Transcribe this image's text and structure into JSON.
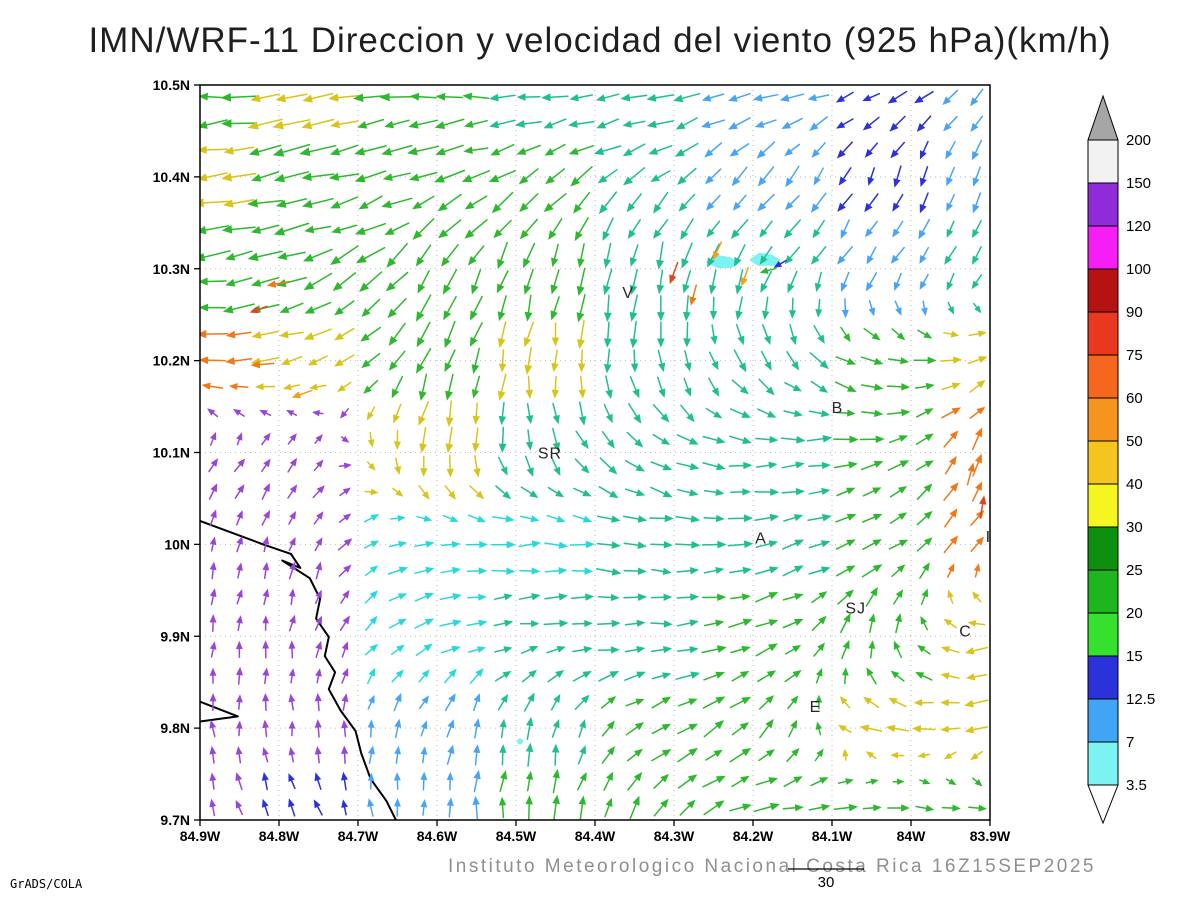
{
  "title": "IMN/WRF-11 Direccion y velocidad del viento (925 hPa)(km/h)",
  "footer": {
    "credit": "GrADS/COLA",
    "caption": "Instituto Meteorologico Nacional Costa Rica  16Z15SEP2025",
    "scale_label": "30"
  },
  "chart_data": {
    "type": "vector-field-map",
    "description": "Wind direction and speed vectors at 925 hPa over Costa Rica, arrows colored by speed (km/h)",
    "x_tick_labels": [
      "84.9W",
      "84.8W",
      "84.7W",
      "84.6W",
      "84.5W",
      "84.4W",
      "84.3W",
      "84.2W",
      "84.1W",
      "84W",
      "83.9W"
    ],
    "y_tick_labels": [
      "10.5N",
      "10.4N",
      "10.3N",
      "10.2N",
      "10.1N",
      "10N",
      "9.9N",
      "9.8N",
      "9.7N"
    ],
    "colorbar": {
      "levels": [
        3.5,
        7,
        12.5,
        15,
        20,
        25,
        30,
        40,
        50,
        60,
        75,
        90,
        100,
        120,
        150,
        200
      ],
      "colors": [
        "#7df2f2",
        "#42a4f5",
        "#2b32d9",
        "#35e02f",
        "#1fb51f",
        "#0e8f0e",
        "#f5f51f",
        "#f5c51f",
        "#f5941f",
        "#f5661f",
        "#e8391f",
        "#b51212",
        "#f51ff5",
        "#8f2bd9",
        "#f2f2f2"
      ],
      "over_color": "#a6a6a6",
      "under_color": "#ffffff"
    },
    "arrow_colors": {
      "cyan": "#29d9d9",
      "sky": "#4aa4f5",
      "blue": "#2b32d9",
      "purple": "#9a45d9",
      "teal": "#1fbf8f",
      "green": "#2eb82e",
      "yellow": "#d9c419",
      "gold": "#f0a019",
      "orange": "#f07819",
      "red": "#e0451f"
    },
    "station_labels": [
      {
        "text": "V",
        "x": 0.542,
        "y": 0.29
      },
      {
        "text": "B",
        "x": 0.807,
        "y": 0.446
      },
      {
        "text": "SR",
        "x": 0.443,
        "y": 0.508
      },
      {
        "text": "A",
        "x": 0.71,
        "y": 0.624
      },
      {
        "text": "SJ",
        "x": 0.83,
        "y": 0.719
      },
      {
        "text": "C",
        "x": 0.969,
        "y": 0.75
      },
      {
        "text": "E",
        "x": 0.779,
        "y": 0.853
      },
      {
        "text": "I",
        "x": 0.998,
        "y": 0.622
      }
    ],
    "wind_grid": {
      "cols": [
        0,
        0.14,
        0.29,
        0.43,
        0.57,
        0.71,
        0.86,
        1.0
      ],
      "rows": [
        0,
        0.12,
        0.25,
        0.37,
        0.5,
        0.62,
        0.75,
        0.87,
        1.0
      ],
      "points": [
        [
          [
            185,
            0.8,
            "green"
          ],
          [
            185,
            0.85,
            "yellow"
          ],
          [
            180,
            0.7,
            "green"
          ],
          [
            180,
            0.6,
            "teal"
          ],
          [
            185,
            0.6,
            "teal"
          ],
          [
            190,
            0.5,
            "sky"
          ],
          [
            200,
            0.45,
            "blue"
          ],
          [
            235,
            0.4,
            "sky"
          ]
        ],
        [
          [
            190,
            0.9,
            "yellow"
          ],
          [
            195,
            0.85,
            "green"
          ],
          [
            195,
            0.7,
            "green"
          ],
          [
            210,
            0.65,
            "green"
          ],
          [
            215,
            0.6,
            "teal"
          ],
          [
            225,
            0.5,
            "sky"
          ],
          [
            245,
            0.45,
            "blue"
          ],
          [
            255,
            0.4,
            "sky"
          ]
        ],
        [
          [
            185,
            0.8,
            "green"
          ],
          [
            200,
            0.75,
            "green"
          ],
          [
            235,
            0.7,
            "green"
          ],
          [
            255,
            0.65,
            "green"
          ],
          [
            260,
            0.6,
            "teal"
          ],
          [
            240,
            0.5,
            "teal"
          ],
          [
            235,
            0.45,
            "sky"
          ],
          [
            235,
            0.4,
            "teal"
          ]
        ],
        [
          [
            185,
            0.7,
            "orange"
          ],
          [
            195,
            0.6,
            "yellow"
          ],
          [
            250,
            0.65,
            "green"
          ],
          [
            262,
            0.6,
            "yellow"
          ],
          [
            272,
            0.55,
            "teal"
          ],
          [
            300,
            0.5,
            "teal"
          ],
          [
            340,
            0.5,
            "green"
          ],
          [
            20,
            0.5,
            "yellow"
          ]
        ],
        [
          [
            50,
            0.3,
            "purple"
          ],
          [
            45,
            0.3,
            "purple"
          ],
          [
            262,
            0.55,
            "yellow"
          ],
          [
            290,
            0.5,
            "teal"
          ],
          [
            330,
            0.5,
            "teal"
          ],
          [
            0,
            0.5,
            "teal"
          ],
          [
            15,
            0.5,
            "green"
          ],
          [
            70,
            0.5,
            "orange"
          ]
        ],
        [
          [
            75,
            0.28,
            "purple"
          ],
          [
            70,
            0.28,
            "purple"
          ],
          [
            10,
            0.45,
            "cyan"
          ],
          [
            0,
            0.5,
            "cyan"
          ],
          [
            355,
            0.5,
            "teal"
          ],
          [
            10,
            0.5,
            "teal"
          ],
          [
            25,
            0.5,
            "green"
          ],
          [
            60,
            0.45,
            "orange"
          ]
        ],
        [
          [
            85,
            0.28,
            "purple"
          ],
          [
            80,
            0.28,
            "purple"
          ],
          [
            20,
            0.4,
            "cyan"
          ],
          [
            5,
            0.45,
            "teal"
          ],
          [
            0,
            0.5,
            "teal"
          ],
          [
            15,
            0.5,
            "green"
          ],
          [
            80,
            0.45,
            "green"
          ],
          [
            190,
            0.5,
            "yellow"
          ]
        ],
        [
          [
            95,
            0.28,
            "purple"
          ],
          [
            95,
            0.28,
            "purple"
          ],
          [
            70,
            0.35,
            "sky"
          ],
          [
            85,
            0.45,
            "teal"
          ],
          [
            30,
            0.5,
            "green"
          ],
          [
            45,
            0.5,
            "green"
          ],
          [
            170,
            0.5,
            "yellow"
          ],
          [
            200,
            0.5,
            "yellow"
          ]
        ],
        [
          [
            110,
            0.3,
            "purple"
          ],
          [
            115,
            0.3,
            "blue"
          ],
          [
            90,
            0.35,
            "sky"
          ],
          [
            85,
            0.5,
            "green"
          ],
          [
            60,
            0.5,
            "green"
          ],
          [
            10,
            0.55,
            "green"
          ],
          [
            0,
            0.55,
            "green"
          ],
          [
            350,
            0.5,
            "green"
          ]
        ]
      ]
    },
    "override_arrows": [
      {
        "x": 0.6,
        "y": 0.255,
        "angle": 250,
        "len": 0.5,
        "color": "red"
      },
      {
        "x": 0.625,
        "y": 0.285,
        "angle": 255,
        "len": 0.45,
        "color": "orange"
      },
      {
        "x": 0.655,
        "y": 0.225,
        "angle": 245,
        "len": 0.4,
        "color": "gold"
      },
      {
        "x": 0.69,
        "y": 0.26,
        "angle": 250,
        "len": 0.4,
        "color": "gold"
      },
      {
        "x": 0.735,
        "y": 0.243,
        "angle": 210,
        "len": 0.22,
        "color": "blue"
      },
      {
        "x": 0.72,
        "y": 0.252,
        "angle": 195,
        "len": 0.3,
        "color": "green"
      },
      {
        "x": 0.975,
        "y": 0.53,
        "angle": 75,
        "len": 0.5,
        "color": "orange"
      },
      {
        "x": 0.99,
        "y": 0.575,
        "angle": 80,
        "len": 0.5,
        "color": "red"
      },
      {
        "x": 0.1,
        "y": 0.27,
        "angle": 190,
        "len": 0.5,
        "color": "orange"
      },
      {
        "x": 0.075,
        "y": 0.305,
        "angle": 200,
        "len": 0.35,
        "color": "red"
      },
      {
        "x": 0.08,
        "y": 0.38,
        "angle": 185,
        "len": 0.5,
        "color": "orange"
      },
      {
        "x": 0.13,
        "y": 0.42,
        "angle": 200,
        "len": 0.45,
        "color": "gold"
      }
    ],
    "shaded_patches": {
      "color": "#7df2f2",
      "polygons": [
        [
          [
            0.64,
            0.241
          ],
          [
            0.653,
            0.231
          ],
          [
            0.67,
            0.234
          ],
          [
            0.683,
            0.241
          ],
          [
            0.673,
            0.249
          ],
          [
            0.655,
            0.249
          ]
        ],
        [
          [
            0.695,
            0.238
          ],
          [
            0.708,
            0.228
          ],
          [
            0.724,
            0.231
          ],
          [
            0.735,
            0.238
          ],
          [
            0.727,
            0.246
          ],
          [
            0.706,
            0.246
          ]
        ]
      ],
      "dot": {
        "x": 0.405,
        "y": 0.893,
        "r": 3
      }
    },
    "coastlines": [
      [
        [
          0,
          0.593
        ],
        [
          0.08,
          0.625
        ],
        [
          0.115,
          0.638
        ],
        [
          0.127,
          0.657
        ],
        [
          0.104,
          0.647
        ],
        [
          0.139,
          0.671
        ],
        [
          0.152,
          0.699
        ],
        [
          0.147,
          0.726
        ],
        [
          0.163,
          0.751
        ],
        [
          0.158,
          0.777
        ],
        [
          0.171,
          0.799
        ],
        [
          0.163,
          0.822
        ],
        [
          0.178,
          0.851
        ],
        [
          0.197,
          0.879
        ],
        [
          0.204,
          0.909
        ],
        [
          0.216,
          0.944
        ],
        [
          0.236,
          0.974
        ],
        [
          0.248,
          1.0
        ]
      ],
      [
        [
          0,
          0.839
        ],
        [
          0.048,
          0.859
        ],
        [
          0,
          0.866
        ]
      ]
    ]
  }
}
